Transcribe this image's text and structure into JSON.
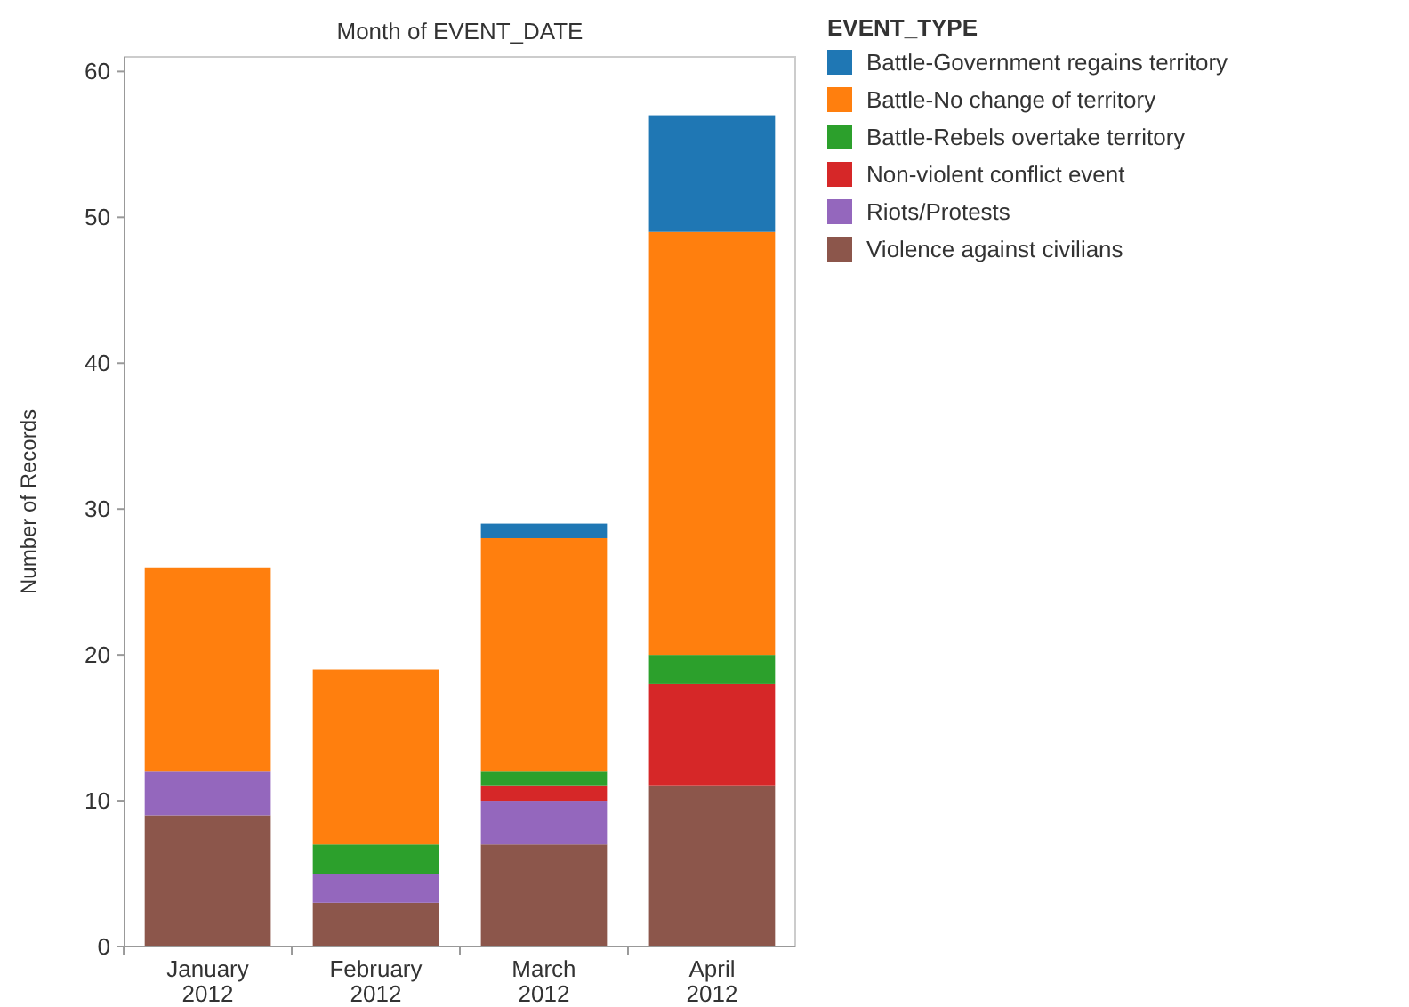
{
  "chart_data": {
    "type": "bar",
    "title": "Month of EVENT_DATE",
    "ylabel": "Number of Records",
    "legend_title": "EVENT_TYPE",
    "categories": [
      "January 2012",
      "February 2012",
      "March 2012",
      "April 2012"
    ],
    "stacked": true,
    "ylim": [
      0,
      61
    ],
    "yticks": [
      0,
      10,
      20,
      30,
      40,
      50,
      60
    ],
    "grid": false,
    "legend": "right",
    "series": [
      {
        "name": "Violence against civilians",
        "color": "#8c564b",
        "values": [
          9,
          3,
          7,
          11
        ]
      },
      {
        "name": "Riots/Protests",
        "color": "#9467bd",
        "values": [
          3,
          2,
          3,
          0
        ]
      },
      {
        "name": "Non-violent conflict event",
        "color": "#d62728",
        "values": [
          0,
          0,
          1,
          7
        ]
      },
      {
        "name": "Battle-Rebels overtake territory",
        "color": "#2ca02c",
        "values": [
          0,
          2,
          1,
          2
        ]
      },
      {
        "name": "Battle-No change of territory",
        "color": "#ff7f0e",
        "values": [
          14,
          12,
          16,
          29
        ]
      },
      {
        "name": "Battle-Government regains territory",
        "color": "#1f77b4",
        "values": [
          0,
          0,
          1,
          8
        ]
      }
    ]
  }
}
